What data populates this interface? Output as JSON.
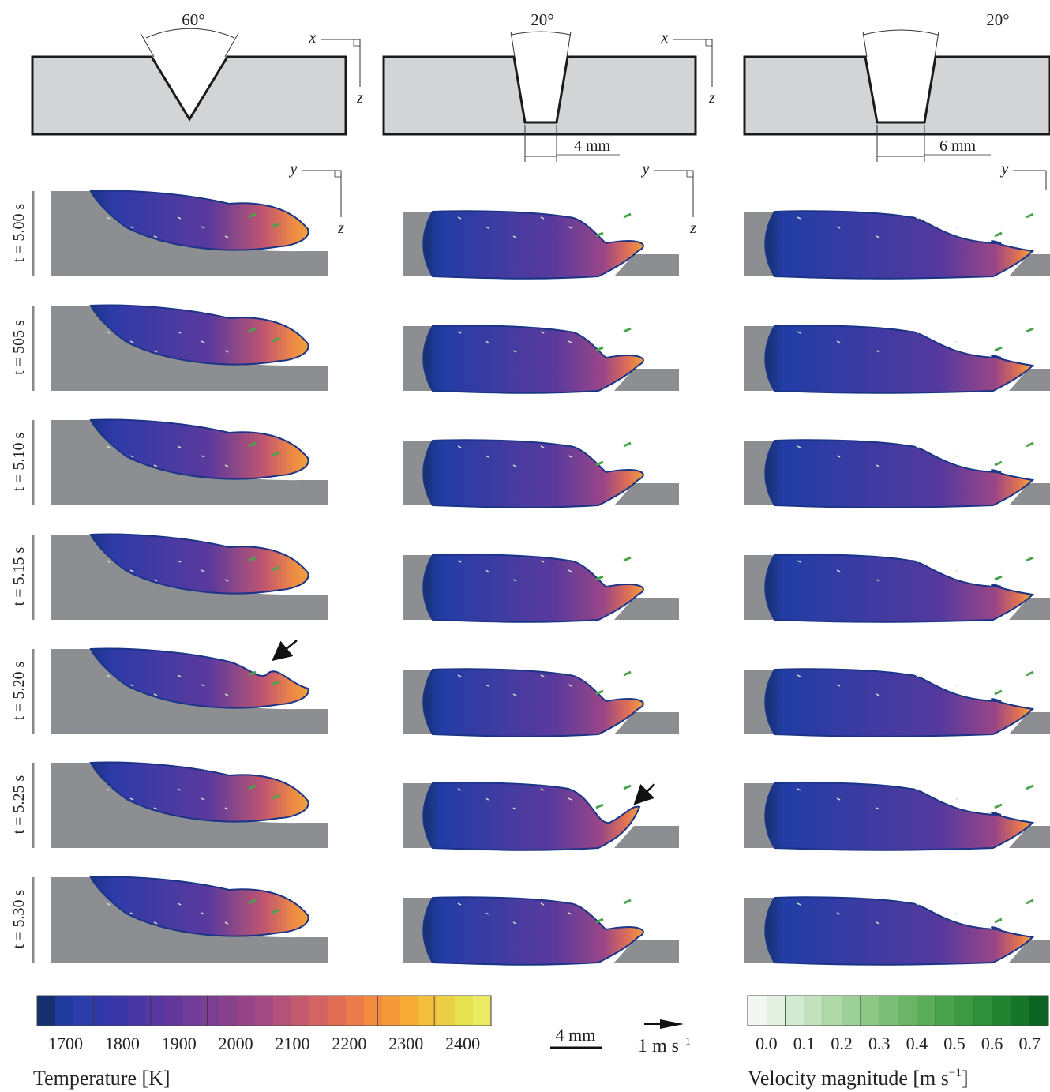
{
  "columns": [
    {
      "angle_label": "60°",
      "width_label": "",
      "axis_x": "x",
      "axis_z": "z"
    },
    {
      "angle_label": "20°",
      "width_label": "4 mm",
      "axis_x": "x",
      "axis_z": "z"
    },
    {
      "angle_label": "20°",
      "width_label": "6 mm",
      "axis_x": "",
      "axis_z": ""
    }
  ],
  "pool_axes": {
    "y": "y",
    "z": "z"
  },
  "times": [
    "t = 5.00 s",
    "t = 505 s",
    "t = 5.10 s",
    "t = 5.15 s",
    "t = 5.20 s",
    "t = 5.25 s",
    "t = 5.30 s"
  ],
  "temperature_bar": {
    "title": "Temperature [K]",
    "ticks": [
      "1700",
      "1800",
      "1900",
      "2000",
      "2100",
      "2200",
      "2300",
      "2400"
    ],
    "colors": [
      "#15306f",
      "#203ca0",
      "#2a3daa",
      "#3238a8",
      "#3b36a6",
      "#4836a3",
      "#5638a0",
      "#62399b",
      "#6f3c97",
      "#7b3f92",
      "#88418c",
      "#964487",
      "#a44a82",
      "#b5527a",
      "#c45a6e",
      "#d46363",
      "#e26d57",
      "#ec7a4b",
      "#f28a40",
      "#f49a38",
      "#f5ab36",
      "#f3be3c",
      "#ecd044",
      "#e6e24f",
      "#eaeb62"
    ]
  },
  "scale_bar": {
    "label": "4 mm"
  },
  "velocity_reference": {
    "label": "1 m s",
    "exponent": "−1"
  },
  "velocity_bar": {
    "title": "Velocity magnitude [m s",
    "title_exponent": "−1",
    "title_end": "]",
    "ticks": [
      "0.0",
      "0.1",
      "0.2",
      "0.3",
      "0.4",
      "0.5",
      "0.6",
      "0.7"
    ],
    "colors": [
      "#f2f8f1",
      "#e3f1e1",
      "#d2eacf",
      "#c1e2bd",
      "#b0d9aa",
      "#9ed099",
      "#8dc887",
      "#7cbe77",
      "#6ab566",
      "#5aad59",
      "#4aa44d",
      "#3c9a43",
      "#2f8f3a",
      "#228331",
      "#177529",
      "#0b6421"
    ]
  },
  "annotations": {
    "arrow_row_col2": "t = 5.20 s",
    "arrow_row_col3": "t = 5.25 s"
  },
  "colors": {
    "workpiece": "#d3d4d6",
    "substrate": "#8c8e92",
    "pool_dark": "#1a3487",
    "pool_mid": "#4a3aa0",
    "pool_hot": "#ec8a45"
  }
}
